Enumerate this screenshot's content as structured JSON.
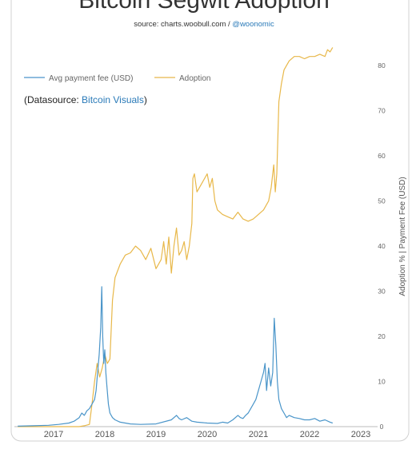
{
  "header": {
    "title": "Bitcoin Segwit Adoption",
    "source_prefix": "source: charts.woobull.com / ",
    "source_handle": "@woonomic"
  },
  "datasource": {
    "prefix": "(Datasource: ",
    "link": "Bitcoin Visuals",
    "suffix": ")"
  },
  "colors": {
    "adoption": "#e8b84a",
    "fee": "#4a95c9",
    "link": "#2a7ab8",
    "axis_text": "#555555",
    "frame": "#cccccc"
  },
  "chart_data": {
    "type": "line",
    "xlabel": "",
    "ylabel": "Adoption % | Payment Fee (USD)",
    "x_ticks": [
      "2017",
      "2018",
      "2019",
      "2020",
      "2021",
      "2022",
      "2023"
    ],
    "y_ticks": [
      0,
      10,
      20,
      30,
      40,
      50,
      60,
      70,
      80
    ],
    "xlim": [
      2016.3,
      2023.2
    ],
    "ylim": [
      0,
      85
    ],
    "legend_position": "top-left",
    "series": [
      {
        "name": "Avg payment fee (USD)",
        "color": "#4a95c9",
        "x": [
          2016.3,
          2016.6,
          2016.9,
          2017.1,
          2017.3,
          2017.4,
          2017.5,
          2017.55,
          2017.6,
          2017.65,
          2017.7,
          2017.75,
          2017.8,
          2017.83,
          2017.86,
          2017.89,
          2017.92,
          2017.94,
          2017.96,
          2017.98,
          2018.0,
          2018.02,
          2018.04,
          2018.07,
          2018.1,
          2018.15,
          2018.2,
          2018.3,
          2018.4,
          2018.5,
          2018.7,
          2019.0,
          2019.3,
          2019.4,
          2019.45,
          2019.5,
          2019.6,
          2019.7,
          2019.8,
          2020.0,
          2020.2,
          2020.3,
          2020.4,
          2020.5,
          2020.6,
          2020.65,
          2020.7,
          2020.75,
          2020.8,
          2020.85,
          2020.9,
          2020.95,
          2021.0,
          2021.05,
          2021.1,
          2021.13,
          2021.16,
          2021.2,
          2021.24,
          2021.28,
          2021.31,
          2021.34,
          2021.37,
          2021.4,
          2021.45,
          2021.5,
          2021.55,
          2021.6,
          2021.7,
          2021.8,
          2021.9,
          2022.0,
          2022.1,
          2022.2,
          2022.3,
          2022.4,
          2022.45
        ],
        "y": [
          0.1,
          0.2,
          0.3,
          0.5,
          0.8,
          1.2,
          2.0,
          3.0,
          2.5,
          3.5,
          4.0,
          5.0,
          6.0,
          8.0,
          12.0,
          16.0,
          22.0,
          31.0,
          20.0,
          14.0,
          17.0,
          12.0,
          9.0,
          5.0,
          3.0,
          2.0,
          1.5,
          1.0,
          0.8,
          0.6,
          0.5,
          0.6,
          1.5,
          2.5,
          1.8,
          1.5,
          2.0,
          1.2,
          1.0,
          0.8,
          0.7,
          1.0,
          0.8,
          1.5,
          2.5,
          2.0,
          1.8,
          2.5,
          3.0,
          4.0,
          5.0,
          6.0,
          8.0,
          10.0,
          12.0,
          14.0,
          8.0,
          13.0,
          9.0,
          12.0,
          24.0,
          18.0,
          10.0,
          6.0,
          4.0,
          3.0,
          2.0,
          2.5,
          2.0,
          1.8,
          1.5,
          1.5,
          1.8,
          1.2,
          1.5,
          1.0,
          0.8
        ]
      },
      {
        "name": "Adoption",
        "color": "#e8b84a",
        "x": [
          2016.3,
          2017.0,
          2017.5,
          2017.6,
          2017.7,
          2017.75,
          2017.8,
          2017.85,
          2017.9,
          2017.95,
          2018.0,
          2018.05,
          2018.1,
          2018.15,
          2018.2,
          2018.3,
          2018.4,
          2018.5,
          2018.6,
          2018.7,
          2018.8,
          2018.9,
          2019.0,
          2019.1,
          2019.15,
          2019.2,
          2019.25,
          2019.3,
          2019.35,
          2019.4,
          2019.45,
          2019.5,
          2019.55,
          2019.6,
          2019.65,
          2019.7,
          2019.72,
          2019.75,
          2019.8,
          2019.9,
          2020.0,
          2020.05,
          2020.1,
          2020.15,
          2020.2,
          2020.3,
          2020.4,
          2020.5,
          2020.6,
          2020.7,
          2020.8,
          2020.9,
          2021.0,
          2021.1,
          2021.2,
          2021.25,
          2021.3,
          2021.33,
          2021.36,
          2021.4,
          2021.45,
          2021.5,
          2021.6,
          2021.7,
          2021.8,
          2021.9,
          2022.0,
          2022.1,
          2022.2,
          2022.3,
          2022.35,
          2022.4,
          2022.45
        ],
        "y": [
          0,
          0,
          0,
          0.2,
          0.5,
          5.0,
          10.0,
          14.0,
          11.0,
          13.0,
          16.0,
          14.0,
          15.0,
          28.0,
          33.0,
          36.0,
          38.0,
          38.5,
          40.0,
          39.0,
          37.0,
          39.5,
          35.0,
          37.0,
          41.0,
          36.0,
          42.0,
          34.0,
          40.0,
          44.0,
          38.0,
          39.0,
          41.0,
          37.0,
          40.0,
          45.0,
          55.0,
          56.0,
          52.0,
          54.0,
          56.0,
          53.0,
          55.0,
          50.0,
          48.0,
          47.0,
          46.5,
          46.0,
          47.5,
          46.0,
          45.5,
          46.0,
          47.0,
          48.0,
          50.0,
          53.0,
          58.0,
          52.0,
          56.0,
          72.0,
          76.0,
          79.0,
          81.0,
          82.0,
          82.0,
          81.5,
          82.0,
          82.0,
          82.5,
          82.0,
          83.5,
          83.0,
          84.0
        ]
      }
    ]
  }
}
